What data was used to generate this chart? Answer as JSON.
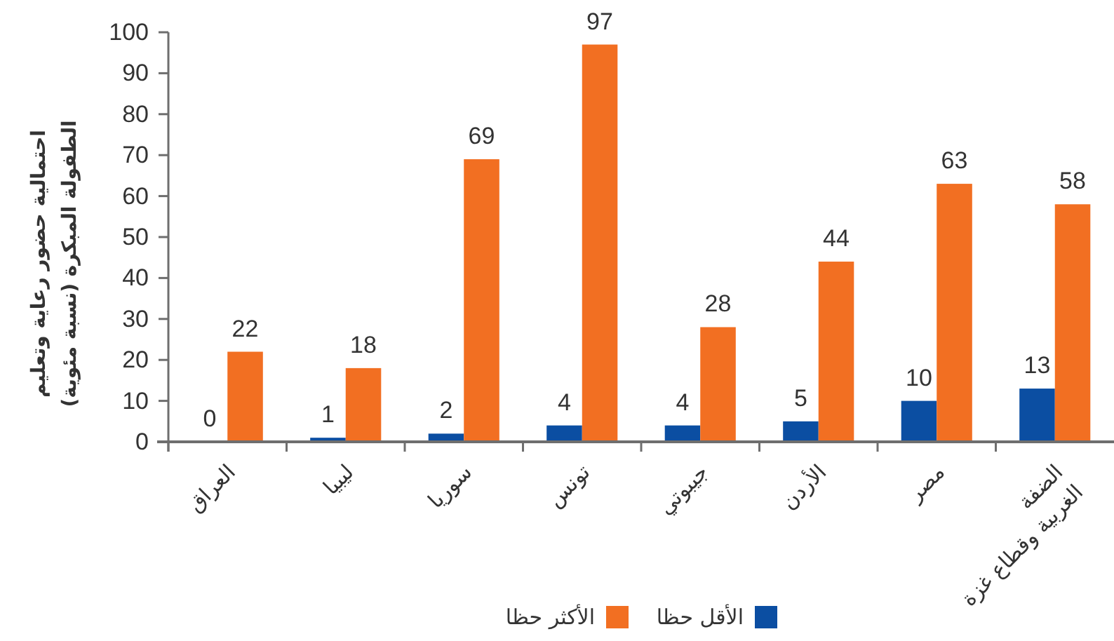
{
  "chart_data": {
    "type": "bar",
    "ylabel": "احتمالية حضور رعاية وتعليم الطفولة المبكرة (نسبة مئوية)",
    "categories": [
      "العراق",
      "ليبيا",
      "سوريا",
      "تونس",
      "جيبوتي",
      "الأردن",
      "مصر",
      "الضفة الغربية وقطاع غزة"
    ],
    "series": [
      {
        "name": "الأقل حظا",
        "color": "#0b4ea2",
        "values": [
          0,
          1,
          2,
          4,
          4,
          5,
          10,
          13
        ]
      },
      {
        "name": "الأكثر حظا",
        "color": "#f26f22",
        "values": [
          22,
          18,
          69,
          97,
          28,
          44,
          63,
          58
        ]
      }
    ],
    "ylim": [
      0,
      100
    ],
    "yticks": [
      0,
      10,
      20,
      30,
      40,
      50,
      60,
      70,
      80,
      90,
      100
    ],
    "data_labels": true,
    "legend": "bottom"
  }
}
